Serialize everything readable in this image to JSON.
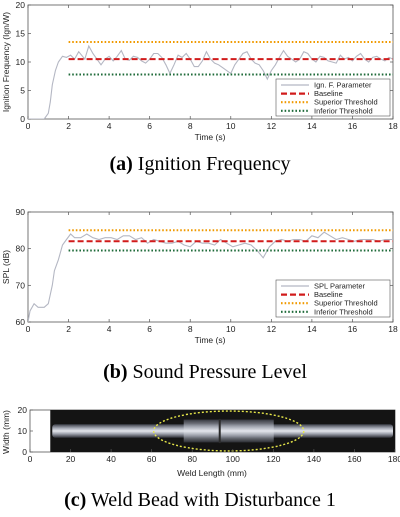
{
  "chart_data": [
    {
      "type": "line",
      "caption_tag": "(a)",
      "caption_text": " Ignition Frequency",
      "xlabel": "Time (s)",
      "ylabel": "Ignition Frequency (Ign/W)",
      "xlim": [
        0,
        18
      ],
      "ylim": [
        0,
        20
      ],
      "xticks": [
        0,
        2,
        4,
        6,
        8,
        10,
        12,
        14,
        16,
        18
      ],
      "yticks": [
        0,
        5,
        10,
        15,
        20
      ],
      "legend_position": "bottom-right",
      "colors": {
        "signal": "#b4b7c3",
        "baseline": "#d11b1b",
        "superior": "#f09a00",
        "inferior": "#1f6b3a"
      },
      "series": [
        {
          "name": "Ign. F. Parameter",
          "style": "solid",
          "x": [
            0,
            0.8,
            1.0,
            1.1,
            1.2,
            1.35,
            1.5,
            1.7,
            1.9,
            2.1,
            2.3,
            2.5,
            2.8,
            3.0,
            3.2,
            3.4,
            3.6,
            3.8,
            4.0,
            4.2,
            4.4,
            4.6,
            4.8,
            5.0,
            5.2,
            5.4,
            5.6,
            5.8,
            6.0,
            6.2,
            6.4,
            6.6,
            6.8,
            7.0,
            7.2,
            7.4,
            7.6,
            7.8,
            8.0,
            8.2,
            8.4,
            8.6,
            8.8,
            9.0,
            9.2,
            9.4,
            9.6,
            9.8,
            10.0,
            10.2,
            10.4,
            10.6,
            10.8,
            11.0,
            11.2,
            11.4,
            11.6,
            11.8,
            12.0,
            12.2,
            12.4,
            12.6,
            12.8,
            13.0,
            13.2,
            13.4,
            13.6,
            13.8,
            14.0,
            14.2,
            14.4,
            14.6,
            14.8,
            15.0,
            15.2,
            15.4,
            15.6,
            15.8,
            16.0,
            16.2,
            16.4,
            16.6,
            16.8,
            17.0,
            17.2,
            17.4,
            17.6,
            17.8,
            18.0
          ],
          "values": [
            0,
            0,
            1,
            3,
            6,
            8.5,
            10,
            11,
            10.8,
            11.2,
            10.5,
            11.8,
            10.5,
            12.8,
            11.5,
            10.5,
            9.5,
            10.5,
            11,
            10.2,
            11,
            12,
            10.5,
            10.3,
            11,
            10.8,
            10.2,
            9.8,
            10.5,
            11.5,
            11.5,
            10.8,
            9.5,
            8,
            9.5,
            11.2,
            10.8,
            11.5,
            10.5,
            9.2,
            9.2,
            10.2,
            11.8,
            10.5,
            9.8,
            9.5,
            9,
            8.5,
            8,
            9.5,
            10.5,
            11.5,
            11.8,
            10.5,
            9.8,
            9.5,
            8.5,
            7,
            8.5,
            9.5,
            10.8,
            12,
            11,
            10.5,
            10,
            10.5,
            11.8,
            11.5,
            10.5,
            10,
            11,
            10.8,
            10.2,
            10,
            9.8,
            11.2,
            10.5,
            10.8,
            10.2,
            11,
            11.5,
            10.5,
            10,
            10.8,
            11,
            10.5,
            10.2,
            10.8,
            10.5
          ]
        },
        {
          "name": "Baseline",
          "style": "dashed",
          "x": [
            2,
            18
          ],
          "values": [
            10.5,
            10.5
          ]
        },
        {
          "name": "Superior Threshold",
          "style": "dotted",
          "x": [
            2,
            18
          ],
          "values": [
            13.5,
            13.5
          ]
        },
        {
          "name": "Inferior Threshold",
          "style": "dotted",
          "x": [
            2,
            18
          ],
          "values": [
            7.8,
            7.8
          ]
        }
      ]
    },
    {
      "type": "line",
      "caption_tag": "(b)",
      "caption_text": " Sound Pressure Level",
      "xlabel": "Time (s)",
      "ylabel": "SPL (dB)",
      "xlim": [
        0,
        18
      ],
      "ylim": [
        60,
        90
      ],
      "xticks": [
        0,
        2,
        4,
        6,
        8,
        10,
        12,
        14,
        16,
        18
      ],
      "yticks": [
        60,
        70,
        80,
        90
      ],
      "legend_position": "bottom-right",
      "colors": {
        "signal": "#b4b7c3",
        "baseline": "#d11b1b",
        "superior": "#f09a00",
        "inferior": "#1f6b3a"
      },
      "series": [
        {
          "name": "SPL Parameter",
          "style": "solid",
          "x": [
            0,
            0.1,
            0.3,
            0.5,
            0.8,
            1.0,
            1.2,
            1.3,
            1.5,
            1.7,
            1.9,
            2.1,
            2.3,
            2.6,
            2.9,
            3.2,
            3.5,
            3.8,
            4.1,
            4.4,
            4.7,
            5.0,
            5.3,
            5.6,
            5.9,
            6.2,
            6.5,
            6.8,
            7.1,
            7.4,
            7.7,
            8.0,
            8.3,
            8.6,
            8.9,
            9.2,
            9.5,
            9.8,
            10.1,
            10.4,
            10.7,
            11.0,
            11.3,
            11.6,
            11.9,
            12.2,
            12.5,
            12.8,
            13.1,
            13.4,
            13.7,
            14.0,
            14.3,
            14.6,
            14.9,
            15.2,
            15.5,
            15.8,
            16.1,
            16.4,
            16.7,
            17.0,
            17.3,
            17.6,
            18.0
          ],
          "values": [
            60,
            63,
            65,
            64,
            64,
            65,
            70,
            74,
            77,
            81,
            82.5,
            84,
            83,
            83,
            84,
            83,
            82.5,
            83,
            83,
            82.5,
            83.5,
            83.5,
            82.5,
            83,
            81.5,
            82.5,
            82,
            81.5,
            81.5,
            82,
            81,
            80.5,
            82,
            81.5,
            81.5,
            81,
            82.5,
            81.5,
            80.5,
            81,
            81.5,
            81,
            79.5,
            77.5,
            80.5,
            82,
            82.5,
            82,
            82.5,
            82.5,
            82,
            83.5,
            83,
            84.5,
            83.5,
            82.5,
            83,
            82.5,
            82,
            82.5,
            82.5,
            82.5,
            82,
            82.5,
            82.5
          ]
        },
        {
          "name": "Baseline",
          "style": "dashed",
          "x": [
            2,
            18
          ],
          "values": [
            82,
            82
          ]
        },
        {
          "name": "Superior Threshold",
          "style": "dotted",
          "x": [
            2,
            18
          ],
          "values": [
            85,
            85
          ]
        },
        {
          "name": "Inferior Threshold",
          "style": "dotted",
          "x": [
            2,
            18
          ],
          "values": [
            79.5,
            79.5
          ]
        }
      ]
    },
    {
      "type": "image",
      "caption_tag": "(c)",
      "caption_text": " Weld Bead with Disturbance 1",
      "xlabel": "Weld Length (mm)",
      "ylabel": "Width (mm)",
      "xlim": [
        0,
        180
      ],
      "ylim": [
        0,
        20
      ],
      "xticks": [
        0,
        20,
        40,
        60,
        80,
        100,
        120,
        140,
        160,
        180
      ],
      "yticks": [
        0,
        10,
        20
      ],
      "colors": {
        "background": "#141414",
        "bead": "#c9ccd3",
        "ellipse": "#e8e84a"
      },
      "image_extent_x": [
        10,
        180
      ],
      "image_extent_y": [
        0,
        20
      ],
      "disturbance_center": [
        98,
        10
      ],
      "disturbance_radii": [
        37,
        10
      ]
    }
  ]
}
